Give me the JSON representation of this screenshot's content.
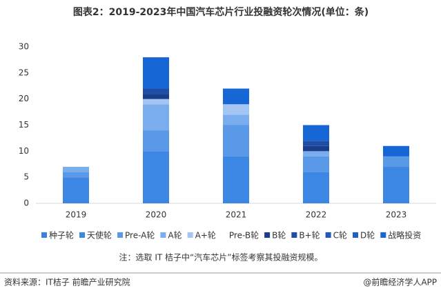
{
  "chart_data": {
    "type": "bar",
    "stacked": true,
    "title": "图表2：2019-2023年中国汽车芯片行业投融资轮次情况(单位：条)",
    "categories": [
      "2019",
      "2020",
      "2021",
      "2022",
      "2023"
    ],
    "series": [
      {
        "name": "种子轮",
        "color": "#3a80dc",
        "values": [
          0,
          0,
          0,
          0,
          0
        ]
      },
      {
        "name": "天使轮",
        "color": "#3c86e4",
        "values": [
          5,
          10,
          9,
          6,
          7
        ]
      },
      {
        "name": "Pre-A轮",
        "color": "#5a98e8",
        "values": [
          1,
          4,
          6,
          3,
          2
        ]
      },
      {
        "name": "A轮",
        "color": "#7aaded",
        "values": [
          1,
          5,
          2,
          1,
          0
        ]
      },
      {
        "name": "A+轮",
        "color": "#a2c5f4",
        "values": [
          0,
          1,
          2,
          0,
          0
        ]
      },
      {
        "name": "Pre-B轮",
        "color": "#ffffff",
        "values": [
          0,
          0,
          0,
          0,
          0
        ]
      },
      {
        "name": "B轮",
        "color": "#1a3f8a",
        "values": [
          0,
          1,
          0,
          1,
          0
        ]
      },
      {
        "name": "B+轮",
        "color": "#1f4ea6",
        "values": [
          0,
          1,
          0,
          1,
          0
        ]
      },
      {
        "name": "C轮",
        "color": "#2358b8",
        "values": [
          0,
          0,
          0,
          0,
          0
        ]
      },
      {
        "name": "D轮",
        "color": "#1e5fc4",
        "values": [
          0,
          0,
          0,
          0,
          0
        ]
      },
      {
        "name": "战略投资",
        "color": "#1766d6",
        "values": [
          0,
          6,
          3,
          3,
          2
        ]
      }
    ],
    "ylim": [
      0,
      30
    ],
    "yticks": [
      0,
      5,
      10,
      15,
      20,
      25,
      30
    ],
    "grid": false,
    "note": "注：选取 IT 桔子中“汽车芯片”标签考察其投融资规模。",
    "source": "资料来源：IT桔子 前瞻产业研究院",
    "brand": "@前瞻经济学人APP"
  }
}
